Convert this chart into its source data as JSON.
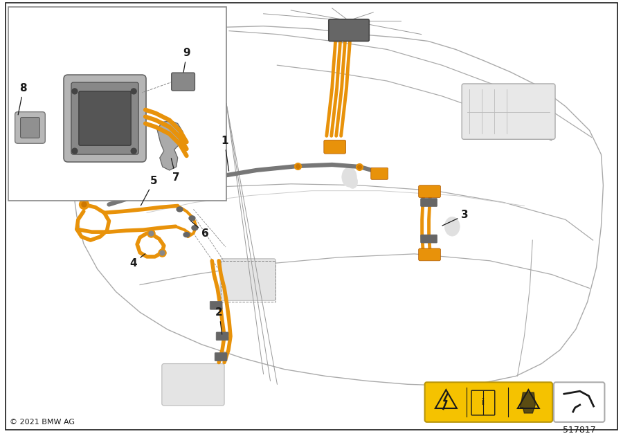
{
  "bg_color": "#ffffff",
  "orange": "#E8920A",
  "dark_gray": "#666666",
  "med_gray": "#888888",
  "lt_gray": "#bbbbbb",
  "black": "#1a1a1a",
  "yellow_warn": "#F5C200",
  "copyright": "© 2021 BMW AG",
  "diagram_number": "517817",
  "figsize": [
    9.0,
    6.3
  ],
  "dpi": 100,
  "car_line_color": "#aaaaaa",
  "car_fill": "#f5f5f5",
  "inset_border": "#888888"
}
